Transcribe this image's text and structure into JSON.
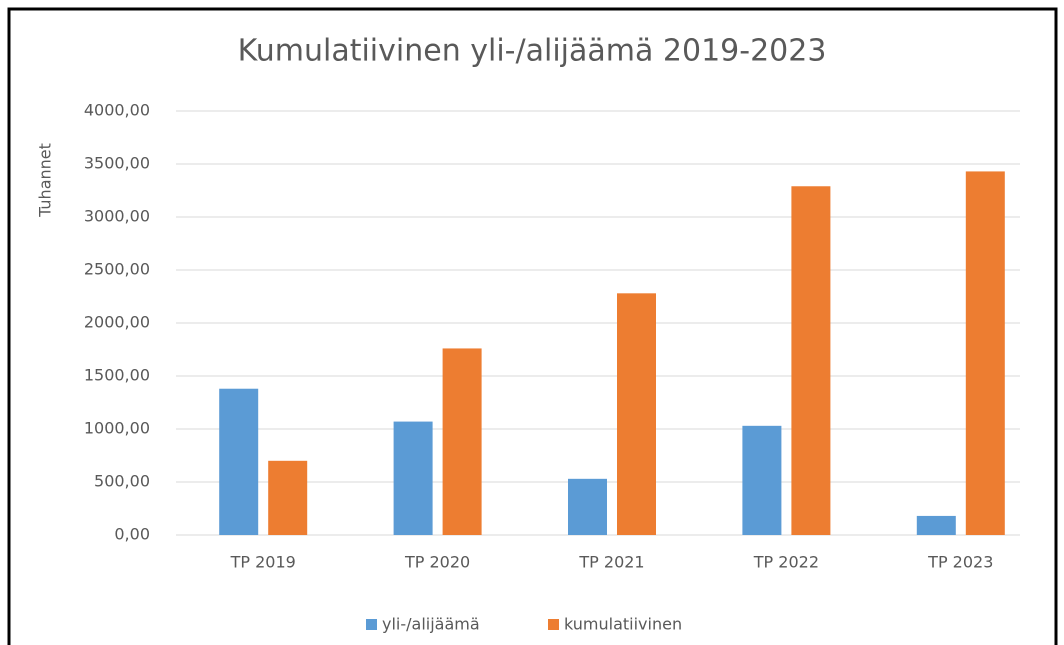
{
  "chart_data": {
    "type": "bar",
    "title": "Kumulatiivinen yli-/alijäämä 2019-2023",
    "y_label": "Tuhannet",
    "categories": [
      "TP 2019",
      "TP 2020",
      "TP 2021",
      "TP 2022",
      "TP 2023"
    ],
    "series": [
      {
        "name": "yli-/alijäämä",
        "color": "#5b9bd5",
        "values": [
          1380,
          1070,
          530,
          1030,
          180
        ]
      },
      {
        "name": "kumulatiivinen",
        "color": "#ed7d31",
        "values": [
          700,
          1760,
          2280,
          3290,
          3430
        ]
      }
    ],
    "ylim": [
      0,
      4000
    ],
    "yticks": [
      {
        "value": 0,
        "label": "0,00"
      },
      {
        "value": 500,
        "label": "500,00"
      },
      {
        "value": 1000,
        "label": "1000,00"
      },
      {
        "value": 1500,
        "label": "1500,00"
      },
      {
        "value": 2000,
        "label": "2000,00"
      },
      {
        "value": 2500,
        "label": "2500,00"
      },
      {
        "value": 3000,
        "label": "3000,00"
      },
      {
        "value": 3500,
        "label": "3500,00"
      },
      {
        "value": 4000,
        "label": "4000,00"
      }
    ],
    "grid": true,
    "legend": "bottom"
  }
}
